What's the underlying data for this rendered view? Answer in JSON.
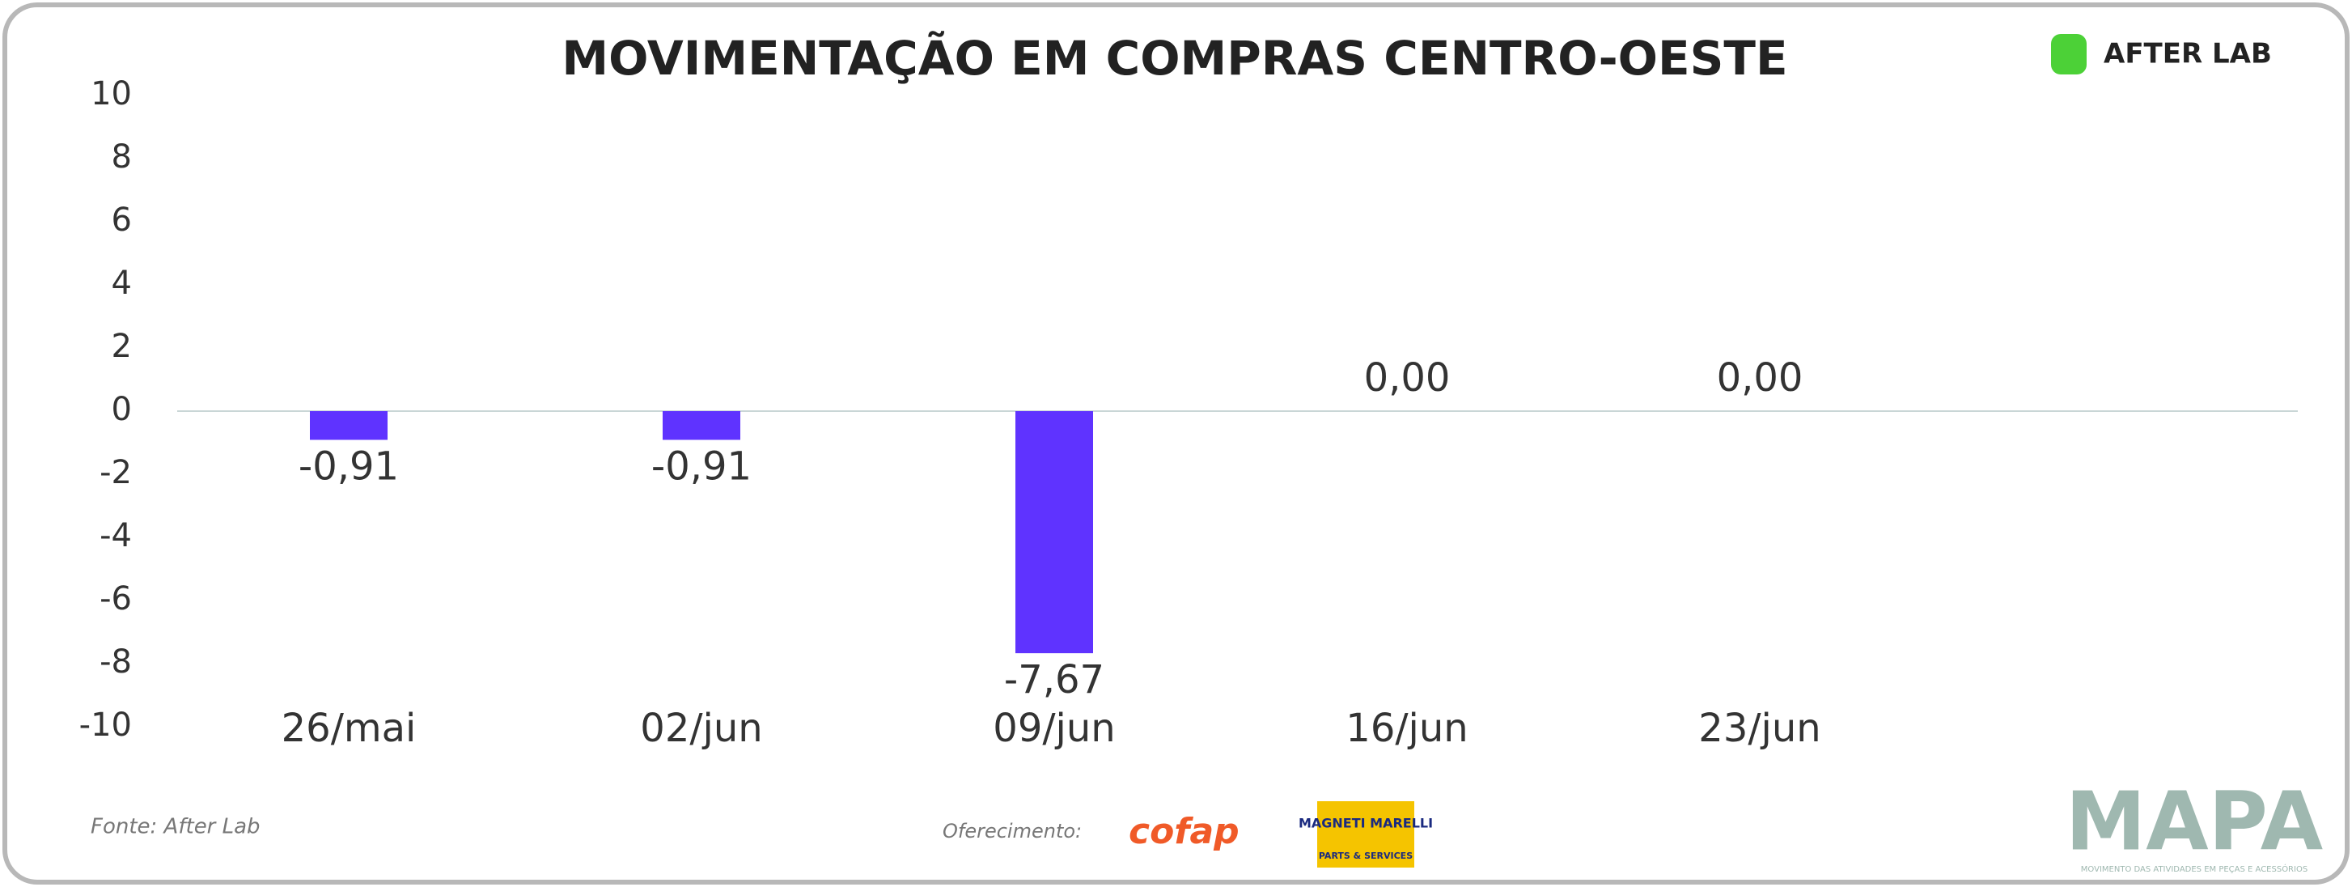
{
  "chart_data": {
    "type": "bar",
    "title": "MOVIMENTAÇÃO EM COMPRAS CENTRO-OESTE",
    "categories": [
      "26/mai",
      "02/jun",
      "09/jun",
      "16/jun",
      "23/jun"
    ],
    "values": [
      -0.91,
      -0.91,
      -7.67,
      0,
      0
    ],
    "value_labels": [
      "-0,91",
      "-0,91",
      "-7,67",
      "0,00",
      "0,00"
    ],
    "color": "#5f33ff",
    "ylim": [
      -10,
      10
    ],
    "yticks": [
      -10,
      -8,
      -6,
      -4,
      -2,
      0,
      2,
      4,
      6,
      8,
      10
    ],
    "grid": false
  },
  "branding": {
    "source": "Fonte: After Lab",
    "sponsor_label": "Oferecimento:",
    "sponsor_1": "cofap",
    "sponsor_2": "MAGNETI MARELLI",
    "sponsor_2_sub": "PARTS & SERVICES",
    "logo": "AFTER LAB",
    "brand": "MAPA",
    "brand_sub": "MOVIMENTO DAS ATIVIDADES EM PEÇAS E ACESSÓRIOS"
  }
}
